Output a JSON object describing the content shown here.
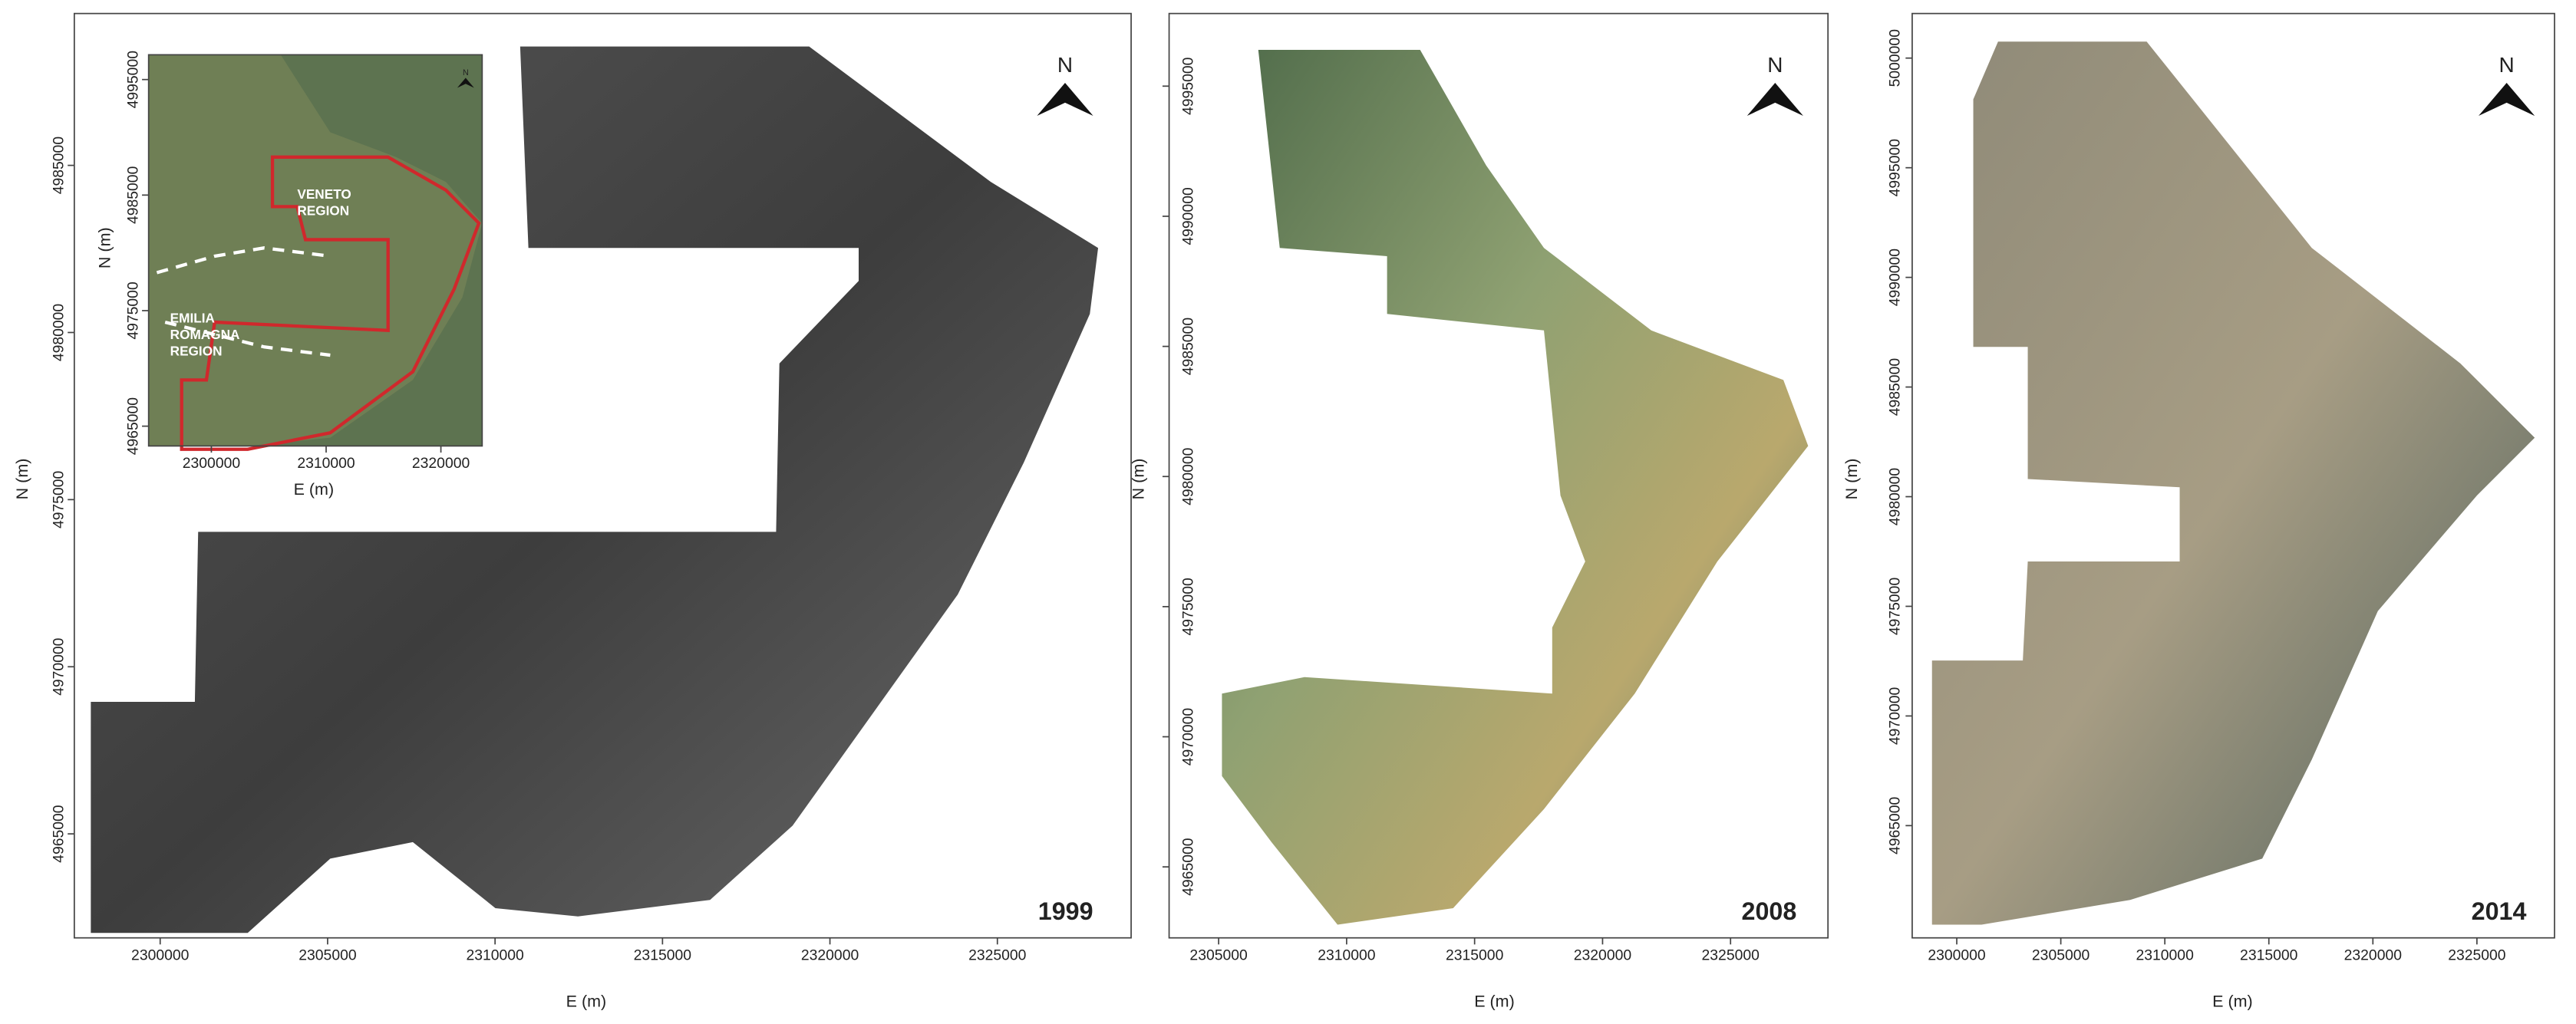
{
  "panels": [
    {
      "year": "1999",
      "x_label": "E (m)",
      "y_label": "N (m)",
      "north": "N",
      "x_ticks": [
        2300000,
        2305000,
        2310000,
        2315000,
        2320000,
        2325000
      ],
      "y_ticks": [
        4965000,
        4970000,
        4975000,
        4980000,
        4985000
      ]
    },
    {
      "year": "2008",
      "x_label": "E (m)",
      "y_label": "N (m)",
      "north": "N",
      "x_ticks": [
        2305000,
        2310000,
        2315000,
        2320000,
        2325000
      ],
      "y_ticks": [
        4965000,
        4970000,
        4975000,
        4980000,
        4985000,
        4990000,
        4995000
      ]
    },
    {
      "year": "2014",
      "x_label": "E (m)",
      "y_label": "N (m)",
      "north": "N",
      "x_ticks": [
        2300000,
        2305000,
        2310000,
        2315000,
        2320000,
        2325000
      ],
      "y_ticks": [
        4965000,
        4970000,
        4975000,
        4980000,
        4985000,
        4990000,
        4995000,
        5000000
      ]
    }
  ],
  "inset": {
    "x_label": "E (m)",
    "y_label": "N (m)",
    "north": "N",
    "x_ticks": [
      2300000,
      2310000,
      2320000
    ],
    "y_ticks": [
      4965000,
      4975000,
      4985000,
      4995000
    ],
    "regions": [
      {
        "lines": [
          "VENETO",
          "REGION"
        ]
      },
      {
        "lines": [
          "EMILIA",
          "ROMAGNA",
          "REGION"
        ]
      }
    ]
  }
}
